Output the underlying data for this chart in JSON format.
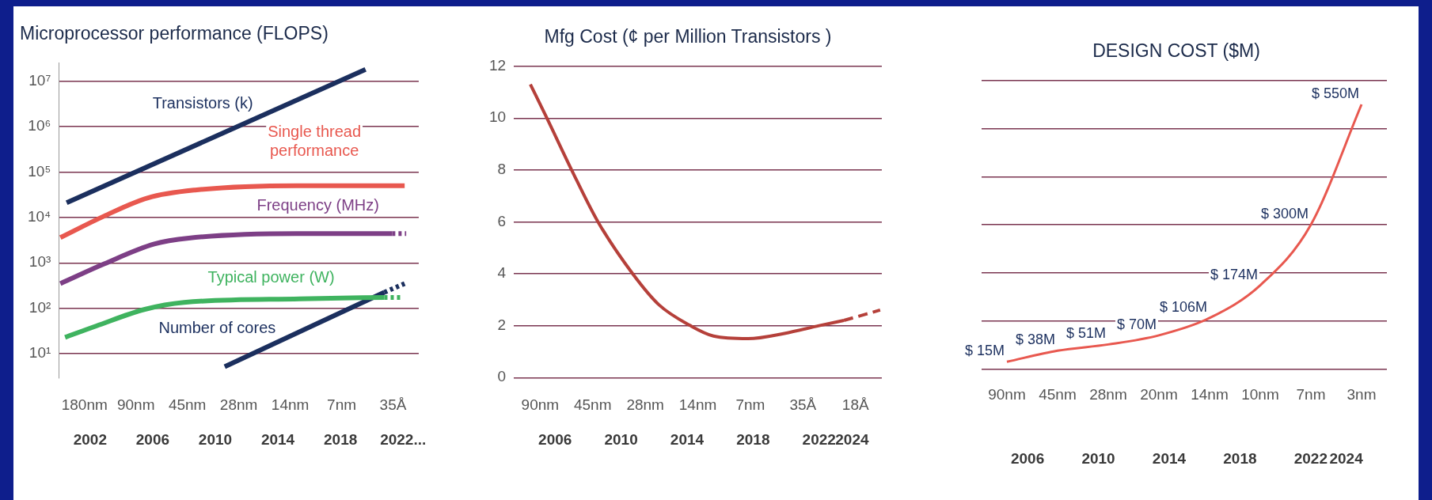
{
  "chart_data": [
    {
      "type": "line",
      "title": "Microprocessor performance (FLOPS)",
      "log": "y",
      "grid": "y",
      "marker": "none",
      "annotations": [
        "180nm",
        "90nm",
        "45nm",
        "28nm",
        "14nm",
        "7nm",
        "35Å"
      ],
      "xlim": [
        2000,
        2023
      ],
      "xticks": [
        2002,
        2006,
        2010,
        2014,
        2018,
        {
          "value": 2022,
          "label": "2022..."
        }
      ],
      "ylim": [
        3,
        25000000
      ],
      "yticks": [
        {
          "value": 10,
          "label": "10¹"
        },
        {
          "value": 100,
          "label": "10²"
        },
        {
          "value": 1000,
          "label": "10³"
        },
        {
          "value": 10000,
          "label": "10⁴"
        },
        {
          "value": 100000,
          "label": "10⁵"
        },
        {
          "value": 1000000,
          "label": "10⁶"
        },
        {
          "value": 10000000,
          "label": "10⁷"
        }
      ],
      "series": [
        {
          "name": "Transistors (k)",
          "color": "#1b2f5e",
          "x": [
            2000.5,
            2019.6
          ],
          "values": [
            21000,
            18000000
          ]
        },
        {
          "name": "Single thread performance",
          "color": "#e8584f",
          "x": [
            2000.1,
            2002.9,
            2005.7,
            2008.7,
            2015.2,
            2022.1
          ],
          "values": [
            3600,
            10700,
            27000,
            40000,
            50000,
            50000
          ]
        },
        {
          "name": "Frequency (MHz)",
          "color": "#7d3f86",
          "x": [
            2000.1,
            2002.9,
            2006.1,
            2008.3,
            2015.2,
            2021.3
          ],
          "values": [
            350,
            950,
            2600,
            3500,
            4400,
            4400
          ]
        },
        {
          "color": "#7d3f86",
          "line_style": "dotted",
          "x": [
            2021.3,
            2022.2
          ],
          "values": [
            4400,
            4400
          ]
        },
        {
          "name": "Typical power (W)",
          "color": "#3fb35f",
          "x": [
            2000.4,
            2002.4,
            2005.5,
            2008.0,
            2015.4,
            2020.8
          ],
          "values": [
            23,
            41,
            95,
            135,
            162,
            174
          ]
        },
        {
          "color": "#3fb35f",
          "line_style": "dotted",
          "x": [
            2020.8,
            2022.0
          ],
          "values": [
            174,
            174
          ]
        },
        {
          "name": "Number of cores",
          "color": "#1b2f5e",
          "x": [
            2010.6,
            2020.8
          ],
          "values": [
            5.2,
            225
          ]
        },
        {
          "color": "#1b2f5e",
          "line_style": "dotted",
          "x": [
            2020.8,
            2022.1
          ],
          "values": [
            225,
            350
          ]
        }
      ]
    },
    {
      "type": "line",
      "title": "Mfg Cost (¢ per Million Transistors )",
      "grid": "y",
      "marker": "none",
      "annotations": [
        "90nm",
        "45nm",
        "28nm",
        "14nm",
        "7nm",
        "35Å",
        "18Å"
      ],
      "xlim": [
        2003.5,
        2025.8
      ],
      "xticks": [
        2006,
        2010,
        2014,
        2018,
        2022,
        2024
      ],
      "ylim": [
        0,
        12
      ],
      "yticks": [
        0,
        2,
        4,
        6,
        8,
        10,
        12
      ],
      "series": [
        {
          "color": "#b5403a",
          "x": [
            2004.5,
            2005.5,
            2007.0,
            2008.6,
            2010.7,
            2012.3,
            2014.2,
            2015.6,
            2017.7,
            2019.9,
            2022.0,
            2023.5
          ],
          "values": [
            11.3,
            10.0,
            8.0,
            6.0,
            4.0,
            2.8,
            2.0,
            1.6,
            1.5,
            1.7,
            2.0,
            2.2
          ]
        },
        {
          "color": "#b5403a",
          "line_style": "dashed",
          "x": [
            2023.5,
            2025.7
          ],
          "values": [
            2.2,
            2.6
          ]
        }
      ]
    },
    {
      "type": "line",
      "title": "DESIGN COST ($M)",
      "grid": "y",
      "marker": "none",
      "categories": [
        "90nm",
        "45nm",
        "28nm",
        "20nm",
        "14nm",
        "10nm",
        "7nm",
        "3nm"
      ],
      "values": [
        15,
        38,
        51,
        70,
        106,
        174,
        300,
        550
      ],
      "color": "#e8584f",
      "value_labels": [
        "$ 15M",
        "$ 38M",
        "$ 51M",
        "$ 70M",
        "$ 106M",
        "$ 174M",
        "$ 300M",
        "$ 550M"
      ],
      "ylim": [
        0,
        600
      ],
      "yticks": [
        {
          "value": 0,
          "label": null
        },
        {
          "value": 100,
          "label": null
        },
        {
          "value": 200,
          "label": null
        },
        {
          "value": 300,
          "label": null
        },
        {
          "value": 400,
          "label": null
        },
        {
          "value": 500,
          "label": null
        },
        {
          "value": 600,
          "label": null
        }
      ],
      "x2lim": [
        2003.4,
        2026.3
      ],
      "x2ticks": [
        2006,
        2010,
        2014,
        2018,
        2022,
        2024
      ]
    }
  ]
}
